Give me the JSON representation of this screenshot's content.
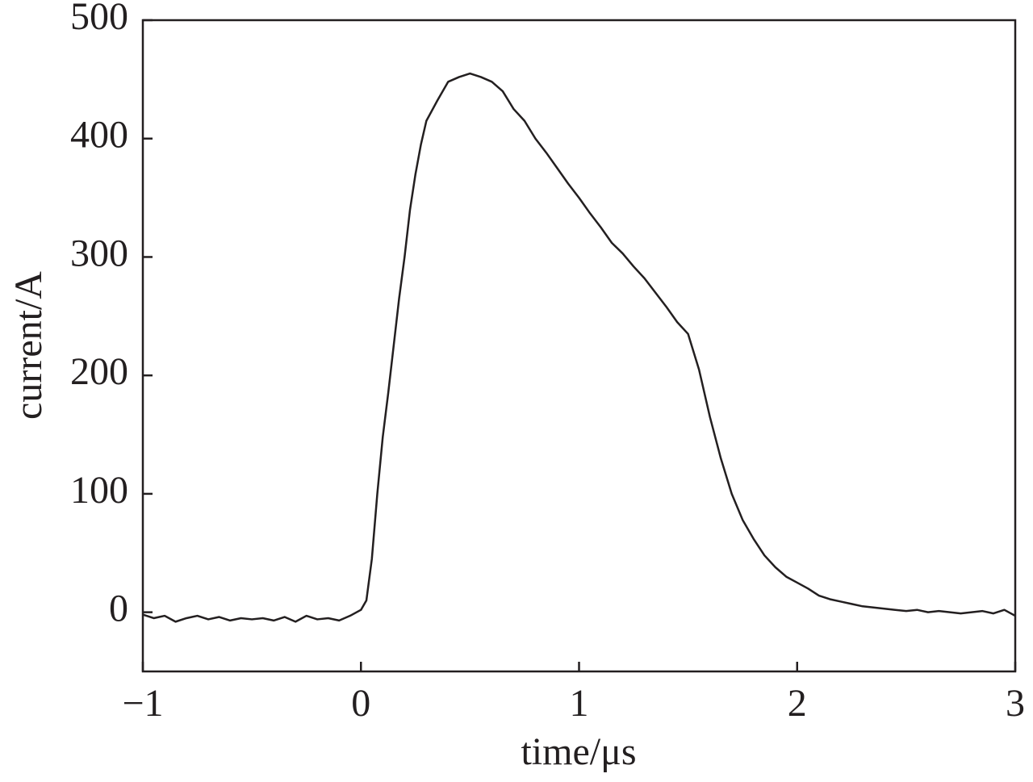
{
  "chart_data": {
    "type": "line",
    "x_label": "time/μs",
    "y_label": "current/A",
    "xlim": [
      -1,
      3
    ],
    "ylim": [
      -50,
      500
    ],
    "xticks": [
      {
        "value": -1,
        "label": "−1"
      },
      0,
      1,
      2,
      3
    ],
    "yticks": [
      0,
      100,
      200,
      300,
      400,
      500
    ],
    "grid": false,
    "x": [
      -1,
      -0.95,
      -0.9,
      -0.85,
      -0.8,
      -0.75,
      -0.7,
      -0.65,
      -0.6,
      -0.55,
      -0.5,
      -0.45,
      -0.4,
      -0.35,
      -0.3,
      -0.25,
      -0.2,
      -0.15,
      -0.1,
      -0.05,
      0,
      0.025,
      0.05,
      0.075,
      0.1,
      0.125,
      0.15,
      0.175,
      0.2,
      0.225,
      0.25,
      0.275,
      0.3,
      0.35,
      0.4,
      0.45,
      0.5,
      0.55,
      0.6,
      0.65,
      0.7,
      0.75,
      0.8,
      0.85,
      0.9,
      0.95,
      1.0,
      1.05,
      1.1,
      1.15,
      1.2,
      1.25,
      1.3,
      1.35,
      1.4,
      1.45,
      1.5,
      1.55,
      1.6,
      1.65,
      1.7,
      1.75,
      1.8,
      1.85,
      1.9,
      1.95,
      2.0,
      2.05,
      2.1,
      2.15,
      2.2,
      2.25,
      2.3,
      2.35,
      2.4,
      2.45,
      2.5,
      2.55,
      2.6,
      2.65,
      2.7,
      2.75,
      2.8,
      2.85,
      2.9,
      2.95,
      3.0
    ],
    "series": [
      {
        "color": "#231f20",
        "values": [
          -2,
          -5,
          -3,
          -8,
          -5,
          -3,
          -6,
          -4,
          -7,
          -5,
          -6,
          -5,
          -7,
          -4,
          -8,
          -3,
          -6,
          -5,
          -7,
          -3,
          2,
          10,
          45,
          100,
          148,
          185,
          225,
          265,
          300,
          340,
          370,
          395,
          415,
          432,
          448,
          452,
          455,
          452,
          448,
          440,
          425,
          415,
          400,
          388,
          375,
          362,
          350,
          337,
          325,
          312,
          303,
          292,
          282,
          270,
          258,
          245,
          235,
          205,
          165,
          130,
          100,
          78,
          62,
          48,
          38,
          30,
          25,
          20,
          14,
          11,
          9,
          7,
          5,
          4,
          3,
          2,
          1,
          2,
          0,
          1,
          0,
          -1,
          0,
          1,
          -1,
          2,
          -3
        ]
      }
    ]
  }
}
